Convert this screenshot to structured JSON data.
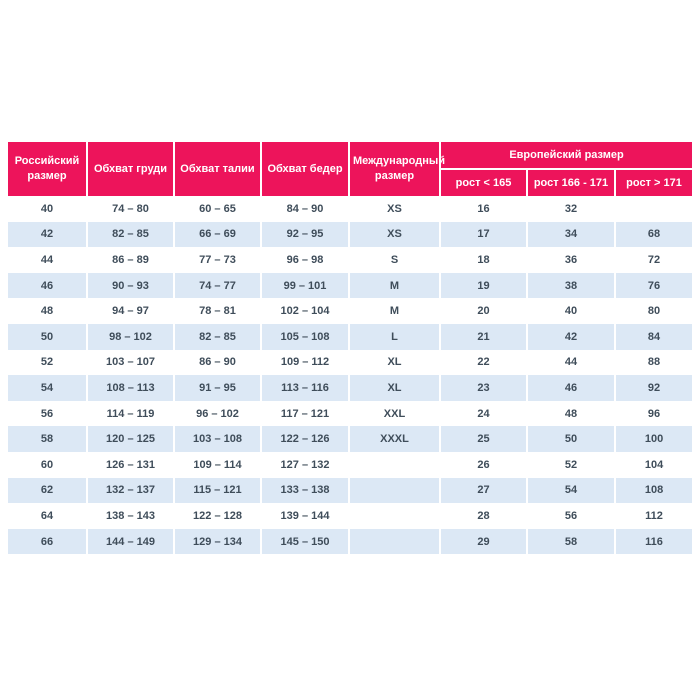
{
  "accent_color": "#ed145b",
  "stripe_color": "#dce8f5",
  "body_text_color": "#3f4d5a",
  "chart_data": {
    "type": "table",
    "title": "",
    "column_groups": {
      "european_size": {
        "label": "Европейский размер",
        "span": 3
      }
    },
    "columns": [
      "Российский размер",
      "Обхват груди",
      "Обхват талии",
      "Обхват бедер",
      "Международный размер",
      "рост < 165",
      "рост 166 - 171",
      "рост > 171"
    ],
    "rows": [
      [
        "40",
        "74 – 80",
        "60 – 65",
        "84 – 90",
        "XS",
        "16",
        "32",
        ""
      ],
      [
        "42",
        "82 – 85",
        "66 – 69",
        "92 – 95",
        "XS",
        "17",
        "34",
        "68"
      ],
      [
        "44",
        "86 – 89",
        "77 – 73",
        "96 – 98",
        "S",
        "18",
        "36",
        "72"
      ],
      [
        "46",
        "90 – 93",
        "74 – 77",
        "99 – 101",
        "M",
        "19",
        "38",
        "76"
      ],
      [
        "48",
        "94 – 97",
        "78 – 81",
        "102 – 104",
        "M",
        "20",
        "40",
        "80"
      ],
      [
        "50",
        "98 – 102",
        "82 – 85",
        "105 – 108",
        "L",
        "21",
        "42",
        "84"
      ],
      [
        "52",
        "103 – 107",
        "86 – 90",
        "109 – 112",
        "XL",
        "22",
        "44",
        "88"
      ],
      [
        "54",
        "108 – 113",
        "91 – 95",
        "113 – 116",
        "XL",
        "23",
        "46",
        "92"
      ],
      [
        "56",
        "114 – 119",
        "96 – 102",
        "117 – 121",
        "XXL",
        "24",
        "48",
        "96"
      ],
      [
        "58",
        "120 – 125",
        "103 – 108",
        "122 – 126",
        "XXXL",
        "25",
        "50",
        "100"
      ],
      [
        "60",
        "126 – 131",
        "109 – 114",
        "127 – 132",
        "",
        "26",
        "52",
        "104"
      ],
      [
        "62",
        "132 – 137",
        "115 – 121",
        "133 – 138",
        "",
        "27",
        "54",
        "108"
      ],
      [
        "64",
        "138 – 143",
        "122 – 128",
        "139 – 144",
        "",
        "28",
        "56",
        "112"
      ],
      [
        "66",
        "144 – 149",
        "129 – 134",
        "145 – 150",
        "",
        "29",
        "58",
        "116"
      ]
    ],
    "layout": {
      "striped_rows": true,
      "header_background": "#ed145b",
      "stripe_background": "#dce8f5"
    }
  }
}
